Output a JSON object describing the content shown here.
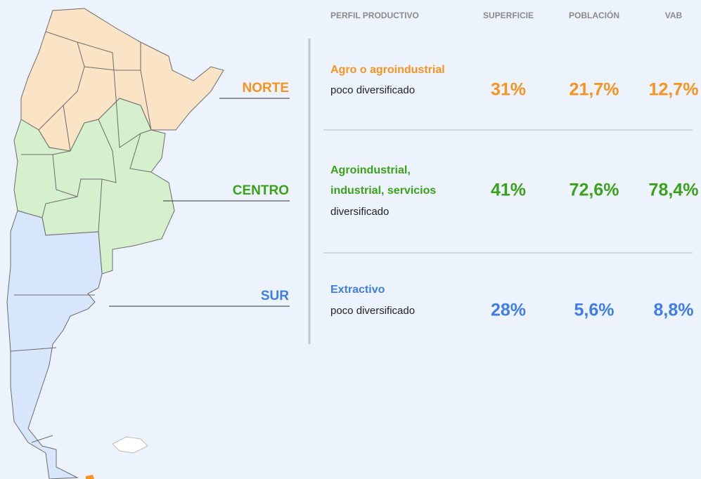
{
  "regions": [
    {
      "label": "NORTE"
    },
    {
      "label": "CENTRO"
    },
    {
      "label": "SUR"
    }
  ],
  "table": {
    "headers": [
      "PERFIL PRODUCTIVO",
      "SUPERFICIE",
      "POBLACIÓN",
      "VAB"
    ],
    "rows": [
      {
        "title": [
          "Agro o agroindustrial"
        ],
        "subtitle": "poco diversificado",
        "values": [
          "31%",
          "21,7%",
          "12,7%"
        ]
      },
      {
        "title": [
          "Agroindustrial,",
          "industrial, servicios"
        ],
        "subtitle": "diversificado",
        "values": [
          "41%",
          "72,6%",
          "78,4%"
        ]
      },
      {
        "title": [
          "Extractivo"
        ],
        "subtitle": "poco diversificado",
        "values": [
          "28%",
          "5,6%",
          "8,8%"
        ]
      }
    ]
  }
}
